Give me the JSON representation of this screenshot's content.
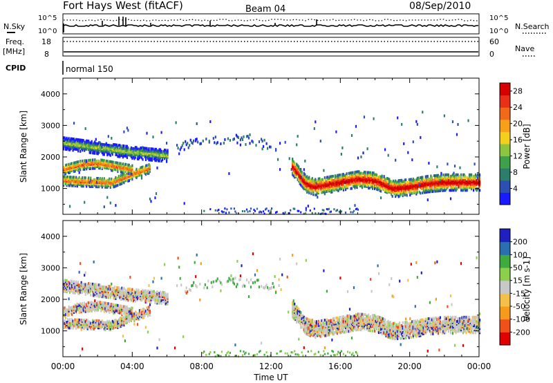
{
  "header": {
    "station": "Fort Hays West (fitACF)",
    "beam": "Beam 04",
    "date": "08/Sep/2010"
  },
  "panels": {
    "nsky_label": "N.Sky",
    "nsky_ticks": [
      "10^5",
      "10^0"
    ],
    "nsearch_label": "N.Search",
    "nsearch_ticks": [
      "10^5",
      "10^0"
    ],
    "freq_label": "Freq.",
    "freq_unit": "[MHz]",
    "freq_ticks": [
      "18",
      "8"
    ],
    "nave_label": "Nave",
    "nave_ticks": [
      "60",
      "0"
    ],
    "cpid_label": "CPID",
    "cpid_value": "normal 150"
  },
  "colors": {
    "power": [
      "#1a1aff",
      "#2c4fb0",
      "#2e7c6b",
      "#3fa04a",
      "#8cc63f",
      "#f4d01c",
      "#f7a11a",
      "#f06a1a",
      "#e83018",
      "#d60000"
    ],
    "velocity": [
      "#e00000",
      "#f0501a",
      "#f59a1a",
      "#f5c04a",
      "#c8c8c8",
      "#8ccf4a",
      "#3faa3f",
      "#2a6fb0",
      "#2020c0"
    ]
  },
  "chart_data": [
    {
      "type": "heatmap",
      "title": "",
      "xlabel": "Time UT",
      "ylabel": "Slant Range [km]",
      "xticks": [
        "00:00",
        "04:00",
        "08:00",
        "12:00",
        "16:00",
        "20:00",
        "00:00"
      ],
      "xlim": [
        0,
        24
      ],
      "ylim": [
        180,
        4500
      ],
      "yticks": [
        "1000",
        "2000",
        "3000",
        "4000"
      ],
      "colorbar": {
        "label": "Power [dB]",
        "ticks": [
          "28",
          "24",
          "20",
          "16",
          "12",
          "8",
          "4"
        ],
        "range": [
          0,
          30
        ]
      },
      "bands": [
        {
          "x": [
            0,
            2.8,
            4,
            5
          ],
          "y": [
            1250,
            1180,
            1450,
            1650
          ]
        },
        {
          "x": [
            0,
            1,
            2,
            3,
            4
          ],
          "y": [
            1600,
            1750,
            1800,
            1700,
            1600
          ]
        },
        {
          "x": [
            0,
            2,
            4,
            6
          ],
          "y": [
            2450,
            2300,
            2150,
            2050
          ]
        },
        {
          "x": [
            13.2,
            14,
            14.5,
            16,
            17,
            18,
            19,
            20,
            21,
            22,
            24
          ],
          "y": [
            1700,
            1150,
            1050,
            1200,
            1300,
            1250,
            1000,
            1050,
            1150,
            1200,
            1200
          ]
        }
      ]
    },
    {
      "type": "heatmap",
      "title": "",
      "xlabel": "Time UT",
      "ylabel": "Slant Range [km]",
      "xticks": [
        "00:00",
        "04:00",
        "08:00",
        "12:00",
        "16:00",
        "20:00",
        "00:00"
      ],
      "xlim": [
        0,
        24
      ],
      "ylim": [
        180,
        4500
      ],
      "yticks": [
        "1000",
        "2000",
        "3000",
        "4000"
      ],
      "colorbar": {
        "label": "Velocity [m s-1]",
        "ticks": [
          "200",
          "100",
          "50",
          "15",
          "-15",
          "-50",
          "-100",
          "-200"
        ],
        "range": [
          -250,
          250
        ]
      }
    }
  ]
}
